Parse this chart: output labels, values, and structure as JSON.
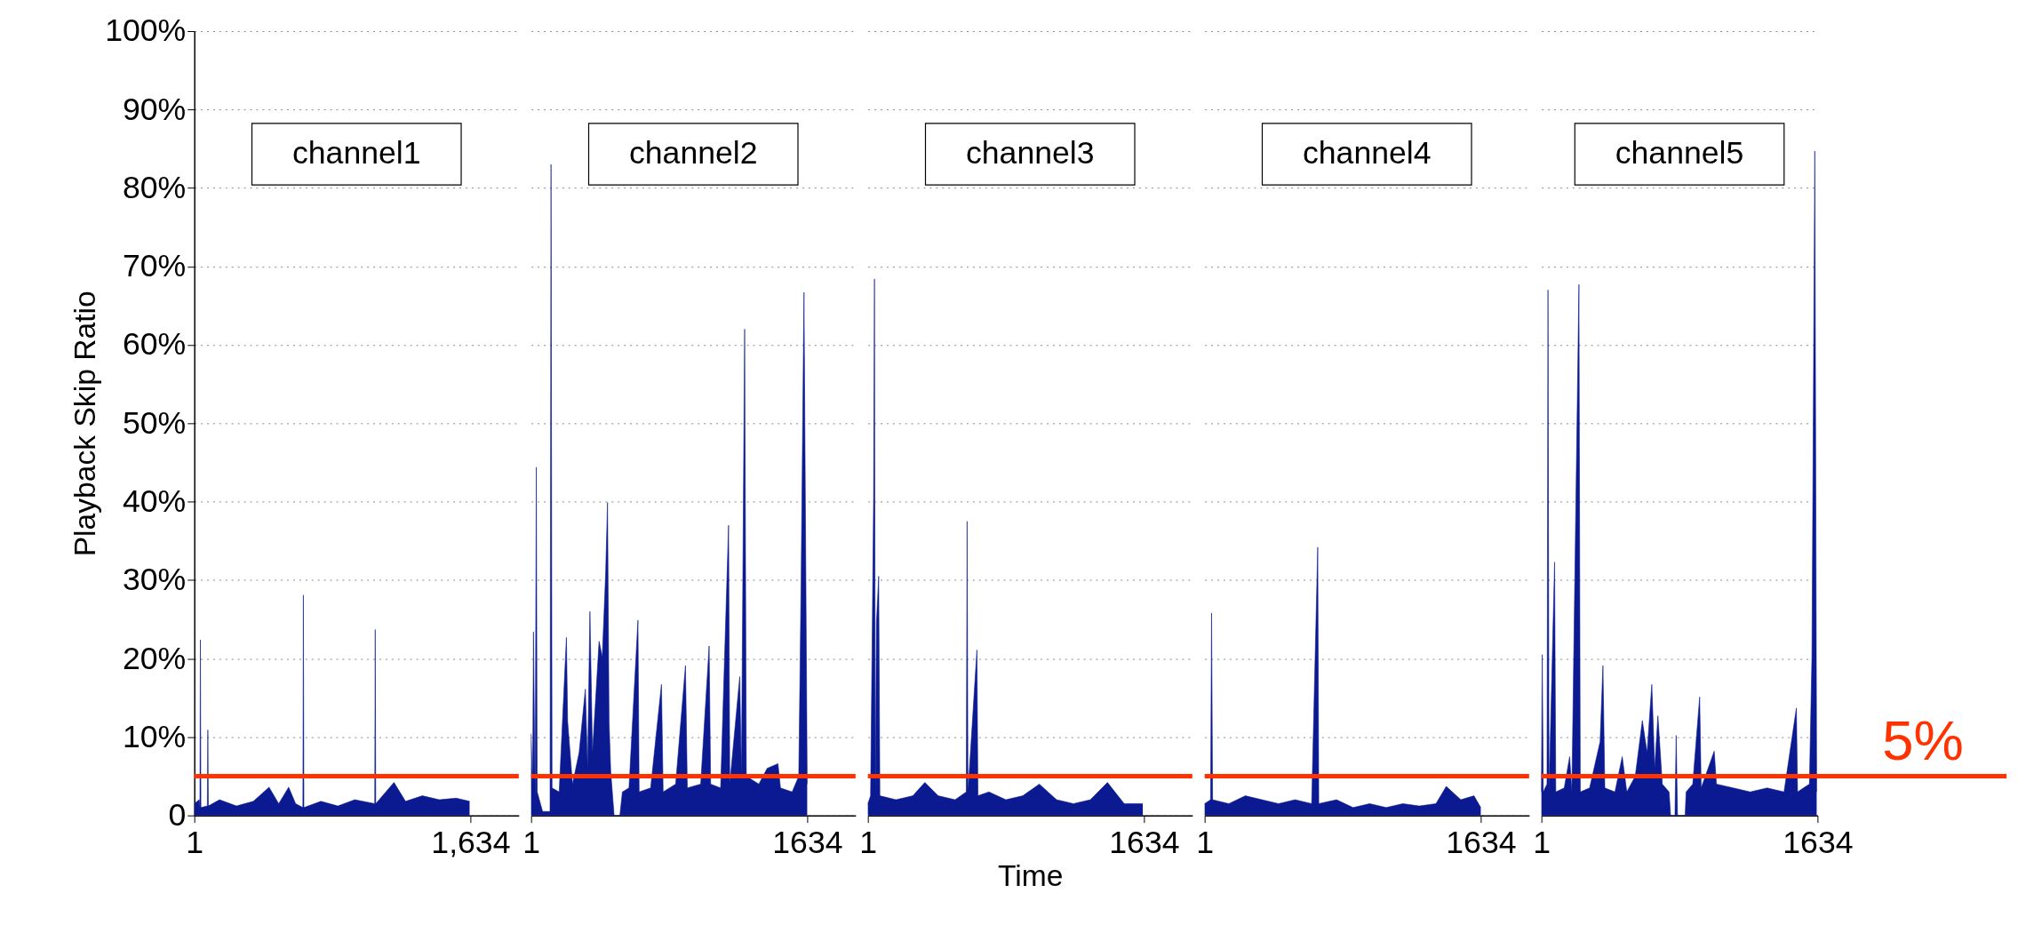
{
  "chart_data": [
    {
      "type": "area",
      "ylabel": "Playback Skip Ratio",
      "xlim": [
        1,
        1920
      ],
      "ylim": [
        0,
        100
      ],
      "xticks": [
        1,
        {
          "value": 1634,
          "label": "1,634"
        }
      ],
      "yticks": [
        0,
        {
          "value": 10,
          "label": "10%"
        },
        {
          "value": 20,
          "label": "20%"
        },
        {
          "value": 30,
          "label": "30%"
        },
        {
          "value": 40,
          "label": "40%"
        },
        {
          "value": 50,
          "label": "50%"
        },
        {
          "value": 60,
          "label": "60%"
        },
        {
          "value": 70,
          "label": "70%"
        },
        {
          "value": 80,
          "label": "80%"
        },
        {
          "value": 90,
          "label": "90%"
        },
        {
          "value": 100,
          "label": "100%"
        }
      ],
      "grid": "y",
      "series": [
        {
          "color": "#0b1a90",
          "x": [
            1,
            30,
            34,
            37,
            40,
            78,
            81,
            84,
            150,
            250,
            350,
            443,
            500,
            559,
            600,
            643,
            646,
            649,
            750,
            850,
            950,
            1068,
            1071,
            1074,
            1182,
            1250,
            1350,
            1450,
            1550,
            1629
          ],
          "values": [
            1.5,
            2.0,
            1.0,
            22.4,
            1.0,
            1.2,
            10.9,
            1.2,
            2.0,
            1.2,
            1.8,
            3.6,
            1.5,
            3.6,
            1.5,
            1.0,
            28.1,
            1.0,
            1.8,
            1.2,
            2.0,
            1.5,
            23.7,
            1.5,
            4.2,
            1.8,
            2.5,
            2.0,
            2.2,
            1.8
          ]
        }
      ],
      "ref_lines": [
        {
          "axis": "y",
          "value": 5,
          "color": "#ff3300"
        }
      ],
      "annotations": [
        "channel1"
      ]
    },
    {
      "type": "area",
      "xlim": [
        1,
        1920
      ],
      "ylim": [
        0,
        100
      ],
      "tick_labels": "x",
      "xticks": [
        1,
        1634
      ],
      "yticks": [
        0,
        10,
        20,
        30,
        40,
        50,
        60,
        70,
        80,
        90,
        100
      ],
      "grid": "y",
      "series": [
        {
          "color": "#0b1a90",
          "x": [
            1,
            10,
            15,
            25,
            32,
            37,
            69,
            113,
            119,
            125,
            167,
            210,
            217,
            246,
            285,
            322,
            335,
            349,
            364,
            403,
            422,
            442,
            453,
            462,
            472,
            492,
            526,
            541,
            580,
            633,
            640,
            708,
            772,
            782,
            856,
            914,
            925,
            1004,
            1054,
            1063,
            1122,
            1169,
            1176,
            1235,
            1245,
            1264,
            1274,
            1348,
            1397,
            1461,
            1476,
            1545,
            1584,
            1598,
            1615,
            1634
          ],
          "values": [
            10.4,
            4.0,
            23.4,
            2.0,
            44.4,
            3.0,
            0.5,
            0.5,
            83.0,
            3.5,
            3.0,
            22.7,
            12.0,
            4.0,
            8.0,
            16.1,
            6.0,
            26.0,
            8.0,
            22.2,
            20.2,
            30.9,
            39.9,
            12.0,
            5.6,
            0.0,
            0.0,
            3.0,
            3.5,
            24.9,
            3.0,
            3.5,
            16.7,
            3.0,
            4.0,
            19.1,
            3.5,
            4.0,
            21.6,
            4.0,
            3.5,
            37.0,
            4.0,
            17.7,
            5.0,
            62.0,
            5.0,
            4.0,
            6.0,
            6.6,
            3.5,
            3.0,
            5.0,
            29.7,
            66.7,
            4.0
          ]
        }
      ],
      "ref_lines": [
        {
          "axis": "y",
          "value": 5,
          "color": "#ff3300"
        }
      ],
      "annotations": [
        "channel2"
      ]
    },
    {
      "type": "area",
      "xlabel": "Time",
      "xlim": [
        1,
        1920
      ],
      "ylim": [
        0,
        100
      ],
      "tick_labels": "x",
      "xticks": [
        1,
        1634
      ],
      "yticks": [
        0,
        10,
        20,
        30,
        40,
        50,
        60,
        70,
        80,
        90,
        100
      ],
      "grid": "y",
      "series": [
        {
          "color": "#0b1a90",
          "x": [
            1,
            17,
            35,
            40,
            45,
            52,
            65,
            72,
            167,
            267,
            338,
            417,
            517,
            583,
            588,
            593,
            646,
            652,
            717,
            817,
            917,
            1015,
            1117,
            1217,
            1317,
            1418,
            1517,
            1627
          ],
          "values": [
            1.5,
            2.5,
            40.4,
            68.4,
            3.0,
            24.6,
            30.5,
            2.5,
            2.0,
            2.5,
            4.2,
            2.5,
            2.0,
            3.0,
            37.5,
            3.0,
            21.1,
            2.5,
            3.0,
            2.0,
            2.5,
            4.0,
            2.0,
            1.5,
            2.0,
            4.2,
            1.5,
            1.5
          ]
        }
      ],
      "ref_lines": [
        {
          "axis": "y",
          "value": 5,
          "color": "#ff3300"
        }
      ],
      "annotations": [
        "channel3"
      ]
    },
    {
      "type": "area",
      "xlim": [
        1,
        1920
      ],
      "ylim": [
        0,
        100
      ],
      "tick_labels": "x",
      "xticks": [
        1,
        1634
      ],
      "yticks": [
        0,
        10,
        20,
        30,
        40,
        50,
        60,
        70,
        80,
        90,
        100
      ],
      "grid": "y",
      "series": [
        {
          "color": "#0b1a90",
          "x": [
            1,
            36,
            42,
            48,
            144,
            242,
            340,
            438,
            536,
            634,
            670,
            676,
            781,
            879,
            977,
            1075,
            1173,
            1271,
            1369,
            1430,
            1516,
            1594,
            1634
          ],
          "values": [
            1.5,
            2.0,
            25.8,
            2.0,
            1.5,
            2.5,
            2.0,
            1.5,
            2.0,
            1.5,
            34.2,
            1.5,
            2.0,
            1.0,
            1.5,
            1.0,
            1.5,
            1.2,
            1.5,
            3.7,
            2.0,
            2.5,
            1.0
          ]
        }
      ],
      "ref_lines": [
        {
          "axis": "y",
          "value": 5,
          "color": "#ff3300"
        }
      ],
      "annotations": [
        "channel4"
      ]
    },
    {
      "type": "area",
      "xlim": [
        1,
        1634
      ],
      "ylim": [
        0,
        100
      ],
      "tick_labels": "x",
      "xticks": [
        1,
        1634
      ],
      "yticks": [
        0,
        10,
        20,
        30,
        40,
        50,
        60,
        70,
        80,
        90,
        100
      ],
      "grid": "y",
      "series": [
        {
          "color": "#0b1a90",
          "x": [
            1,
            6,
            12,
            34,
            40,
            46,
            79,
            86,
            136,
            168,
            181,
            223,
            231,
            286,
            348,
            365,
            376,
            436,
            479,
            506,
            556,
            598,
            626,
            654,
            671,
            690,
            716,
            756,
            765,
            791,
            798,
            806,
            851,
            857,
            896,
            937,
            946,
            1023,
            1036,
            1136,
            1236,
            1336,
            1436,
            1509,
            1516,
            1586,
            1601,
            1618,
            1629
          ],
          "values": [
            3.0,
            20.5,
            3.0,
            4.0,
            67.0,
            3.0,
            32.3,
            3.0,
            3.5,
            7.5,
            3.0,
            67.7,
            3.0,
            3.5,
            9.4,
            19.1,
            3.5,
            3.0,
            7.5,
            3.0,
            5.0,
            12.1,
            8.0,
            16.7,
            6.0,
            12.7,
            4.0,
            3.0,
            0.0,
            0.0,
            10.2,
            0.0,
            0.0,
            3.0,
            4.0,
            15.1,
            3.5,
            8.2,
            4.0,
            3.5,
            3.0,
            3.5,
            3.0,
            13.7,
            3.0,
            4.0,
            20.2,
            84.7,
            3.0
          ]
        }
      ],
      "ref_lines": [
        {
          "axis": "y",
          "value": 5,
          "label": "5%",
          "color": "#ff3300"
        }
      ],
      "annotations": [
        "channel5"
      ]
    }
  ]
}
